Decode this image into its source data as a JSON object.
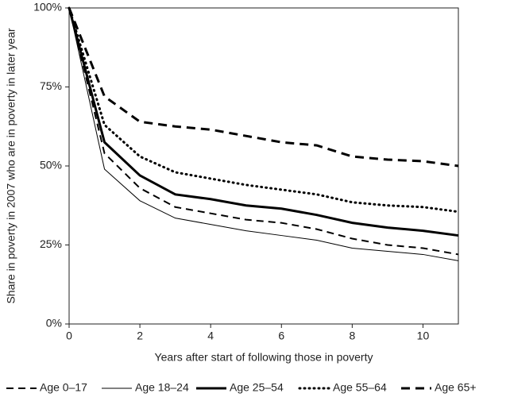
{
  "chart_data": {
    "type": "line",
    "x_label": "Years after start of following those in poverty",
    "y_label": "Share in poverty in 2007 who are in poverty in later year",
    "x": [
      0,
      1,
      2,
      3,
      4,
      5,
      6,
      7,
      8,
      9,
      10,
      11
    ],
    "series": [
      {
        "name": "Age 0–17",
        "color": "#000000",
        "width": 2,
        "dash": "9,6",
        "values": [
          100,
          54,
          43,
          37,
          35,
          33,
          32,
          30,
          27,
          25,
          24,
          22
        ]
      },
      {
        "name": "Age 18–24",
        "color": "#000000",
        "width": 1,
        "dash": "none",
        "values": [
          100,
          49,
          39,
          33.5,
          31.5,
          29.5,
          28,
          26.5,
          24,
          23,
          22,
          20
        ]
      },
      {
        "name": "Age 25–54",
        "color": "#000000",
        "width": 3,
        "dash": "none",
        "values": [
          100,
          57.5,
          47,
          41,
          39.5,
          37.5,
          36.5,
          34.5,
          32,
          30.5,
          29.5,
          28
        ]
      },
      {
        "name": "Age 55–64",
        "color": "#000000",
        "width": 3,
        "dash": "1,5",
        "values": [
          100,
          63,
          53,
          48,
          46,
          44,
          42.5,
          41,
          38.5,
          37.5,
          37,
          35.5
        ]
      },
      {
        "name": "Age 65+",
        "color": "#000000",
        "width": 3,
        "dash": "11,7",
        "values": [
          100,
          72,
          64,
          62.5,
          61.5,
          59.5,
          57.5,
          56.5,
          53,
          52,
          51.5,
          50
        ]
      }
    ],
    "xlim": [
      0,
      11
    ],
    "xticks": [
      0,
      2,
      4,
      6,
      8,
      10
    ],
    "ylim": [
      0,
      100
    ],
    "yticks": [
      {
        "value": 0,
        "label": "0%"
      },
      {
        "value": 25,
        "label": "25%"
      },
      {
        "value": 50,
        "label": "50%"
      },
      {
        "value": 75,
        "label": "75%"
      },
      {
        "value": 100,
        "label": "100%"
      }
    ],
    "grid": false,
    "legend": "bottom"
  }
}
